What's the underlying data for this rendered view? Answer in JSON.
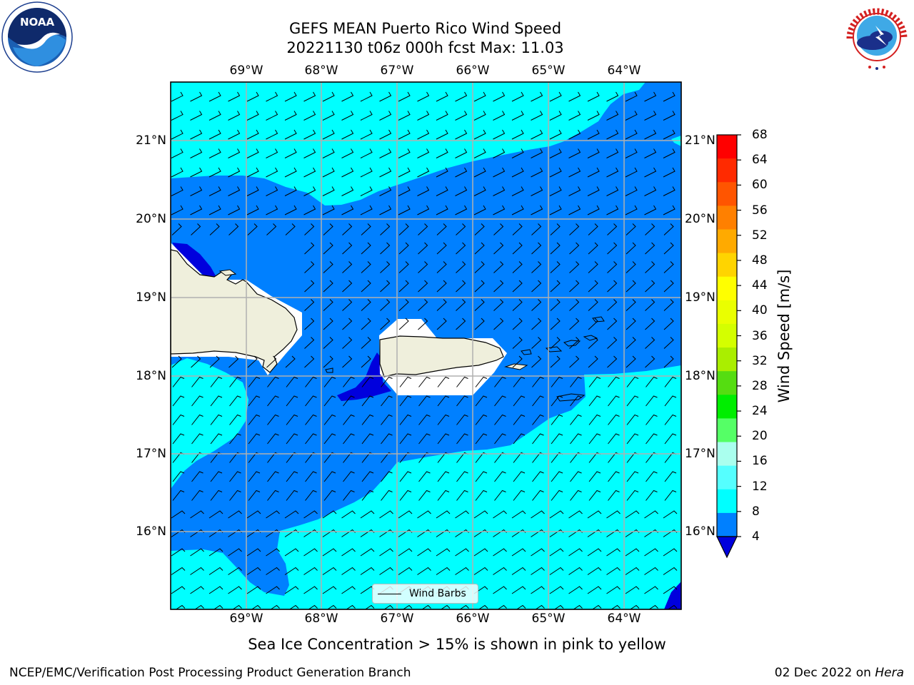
{
  "title": {
    "line1": "GEFS MEAN Puerto Rico Wind Speed",
    "line2": "20221130 t06z 000h fcst   Max: 11.03"
  },
  "map": {
    "lon_labels": [
      "69°W",
      "68°W",
      "67°W",
      "66°W",
      "65°W",
      "64°W"
    ],
    "lat_labels": [
      "21°N",
      "20°N",
      "19°N",
      "18°N",
      "17°N",
      "16°N"
    ],
    "legend_label": "Wind Barbs",
    "colors": {
      "low_wind": "#0000dd",
      "mid_wind": "#0080ff",
      "high_wind": "#00ffff",
      "land": "#efefdc",
      "water_no_data": "#ffffff"
    }
  },
  "colorbar": {
    "label": "Wind Speed [m/s]",
    "ticks": [
      "68",
      "64",
      "60",
      "56",
      "52",
      "48",
      "44",
      "40",
      "36",
      "32",
      "28",
      "24",
      "20",
      "16",
      "12",
      "8",
      "4"
    ],
    "colors": [
      "#ff0000",
      "#ff2a00",
      "#ff5500",
      "#ff8000",
      "#ffaa00",
      "#ffd400",
      "#ffff00",
      "#eaff00",
      "#d4ff00",
      "#aaee00",
      "#55dd11",
      "#00ee00",
      "#55ff66",
      "#aaffee",
      "#55ffff",
      "#00ffff",
      "#0080ff"
    ],
    "extend_color": "#0000dd"
  },
  "subtitle": "Sea Ice Concentration > 15% is shown in pink to yellow",
  "footer": {
    "left": "NCEP/EMC/Verification Post Processing Product Generation Branch",
    "date": "02 Dec 2022 on ",
    "machine": "Hera"
  }
}
